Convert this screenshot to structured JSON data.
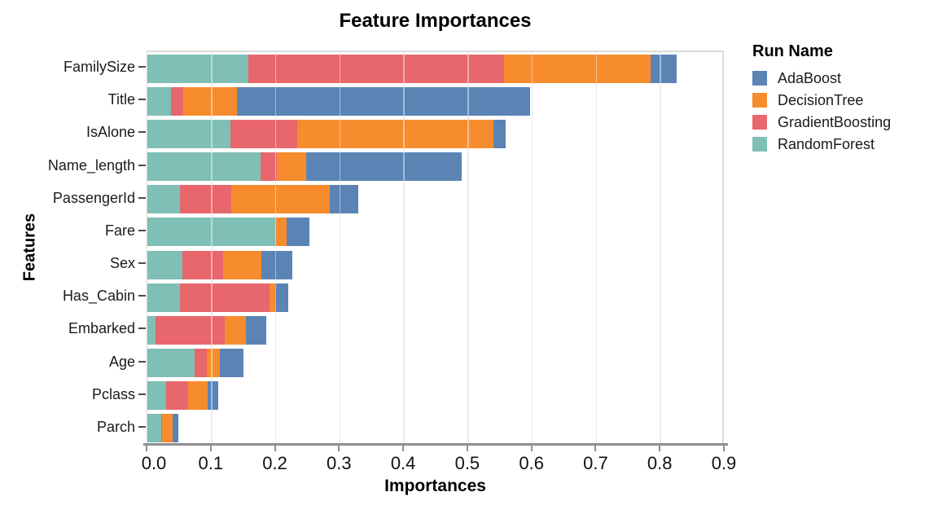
{
  "chart_data": {
    "type": "bar",
    "orientation": "horizontal",
    "stacked": true,
    "title": "Feature Importances",
    "xlabel": "Importances",
    "ylabel": "Features",
    "legend_title": "Run Name",
    "legend_position": "right",
    "grid": "vertical",
    "xlim": [
      0.0,
      0.9
    ],
    "xticks": [
      "0.0",
      "0.1",
      "0.2",
      "0.3",
      "0.4",
      "0.5",
      "0.6",
      "0.7",
      "0.8",
      "0.9"
    ],
    "categories": [
      "FamilySize",
      "Title",
      "IsAlone",
      "Name_length",
      "PassengerId",
      "Fare",
      "Sex",
      "Has_Cabin",
      "Embarked",
      "Age",
      "Pclass",
      "Parch"
    ],
    "series": [
      {
        "name": "AdaBoost",
        "color": "#5b84b5",
        "values": [
          0.04,
          0.457,
          0.019,
          0.243,
          0.045,
          0.036,
          0.048,
          0.021,
          0.032,
          0.037,
          0.016,
          0.009
        ]
      },
      {
        "name": "DecisionTree",
        "color": "#f68c2e",
        "values": [
          0.229,
          0.084,
          0.307,
          0.045,
          0.153,
          0.016,
          0.06,
          0.009,
          0.032,
          0.02,
          0.03,
          0.016
        ]
      },
      {
        "name": "GradientBoosting",
        "color": "#e7676c",
        "values": [
          0.399,
          0.019,
          0.103,
          0.025,
          0.08,
          0.0,
          0.064,
          0.139,
          0.108,
          0.02,
          0.035,
          0.002
        ]
      },
      {
        "name": "RandomForest",
        "color": "#7fbfb6",
        "values": [
          0.157,
          0.037,
          0.13,
          0.177,
          0.051,
          0.201,
          0.054,
          0.051,
          0.013,
          0.073,
          0.029,
          0.021
        ]
      }
    ],
    "stack_order_note": "bars stack left-to-right in reverse legend order: RandomForest, GradientBoosting, DecisionTree, AdaBoost"
  }
}
